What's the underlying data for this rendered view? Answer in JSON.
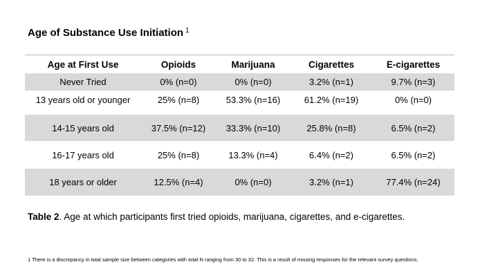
{
  "title": "Age of Substance Use Initiation",
  "title_footnote_mark": "1",
  "table": {
    "headers": [
      "Age at First Use",
      "Opioids",
      "Marijuana",
      "Cigarettes",
      "E-cigarettes"
    ],
    "rows": [
      [
        "Never Tried",
        "0% (n=0)",
        "0% (n=0)",
        "3.2% (n=1)",
        "9.7% (n=3)"
      ],
      [
        "13 years old or younger",
        "25% (n=8)",
        "53.3% (n=16)",
        "61.2% (n=19)",
        "0% (n=0)"
      ],
      [
        "14-15 years old",
        "37.5% (n=12)",
        "33.3% (n=10)",
        "25.8% (n=8)",
        "6.5% (n=2)"
      ],
      [
        "16-17 years old",
        "25% (n=8)",
        "13.3% (n=4)",
        "6.4% (n=2)",
        "6.5% (n=2)"
      ],
      [
        "18 years or older",
        "12.5% (n=4)",
        "0% (n=0)",
        "3.2% (n=1)",
        "77.4% (n=24)"
      ]
    ]
  },
  "caption": {
    "label": "Table 2",
    "text": ". Age at which participants first tried opioids, marijuana, cigarettes, and e-cigarettes."
  },
  "footnote": {
    "mark": "1",
    "text": " There is a discrepancy in total sample size between categories with total N ranging from 30 to 32. This is a result of missing responses for the relevant survey questions."
  },
  "colors": {
    "shade": "#d9d9d9",
    "rule": "#b8b8b8"
  }
}
